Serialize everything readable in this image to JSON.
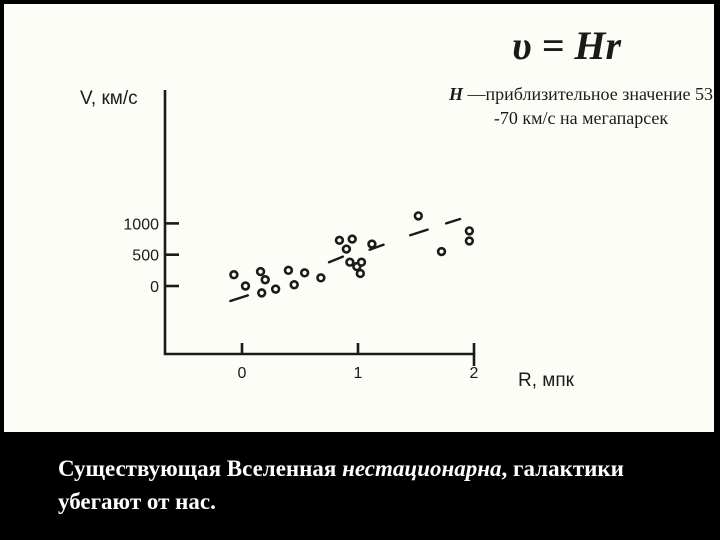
{
  "formula": {
    "upsilon": "υ",
    "rest": " = Hr"
  },
  "note": {
    "h_symbol": "H",
    "text": " —приблизительное значение 53 -70 км/с на мегапарсек"
  },
  "caption": {
    "part1": " Существующая Вселенная ",
    "part2_italic": "нестационарна",
    "part3": ", галактики убегают от нас."
  },
  "chart_data": {
    "type": "scatter",
    "ylabel": "V, км/с",
    "xlabel": "R, мпк",
    "x_ticks": [
      "0",
      "1",
      "2"
    ],
    "y_ticks": [
      "1000",
      "500",
      "0"
    ],
    "xlim": [
      -0.6,
      2.15
    ],
    "ylim": [
      -560,
      1250
    ],
    "points": [
      {
        "x": -0.07,
        "y": 180
      },
      {
        "x": 0.03,
        "y": 0
      },
      {
        "x": 0.16,
        "y": 230
      },
      {
        "x": 0.2,
        "y": 100
      },
      {
        "x": 0.17,
        "y": -110
      },
      {
        "x": 0.29,
        "y": -50
      },
      {
        "x": 0.4,
        "y": 250
      },
      {
        "x": 0.45,
        "y": 20
      },
      {
        "x": 0.54,
        "y": 210
      },
      {
        "x": 0.68,
        "y": 130
      },
      {
        "x": 0.84,
        "y": 730
      },
      {
        "x": 0.95,
        "y": 750
      },
      {
        "x": 0.9,
        "y": 590
      },
      {
        "x": 0.93,
        "y": 380
      },
      {
        "x": 0.99,
        "y": 310
      },
      {
        "x": 1.03,
        "y": 380
      },
      {
        "x": 1.02,
        "y": 200
      },
      {
        "x": 1.12,
        "y": 670
      },
      {
        "x": 1.52,
        "y": 1120
      },
      {
        "x": 1.72,
        "y": 550
      },
      {
        "x": 1.96,
        "y": 880
      },
      {
        "x": 1.96,
        "y": 720
      }
    ],
    "trend_segments": [
      {
        "x1": -0.1,
        "y1": -240,
        "x2": 0.05,
        "y2": -150
      },
      {
        "x1": 0.75,
        "y1": 380,
        "x2": 0.87,
        "y2": 470
      },
      {
        "x1": 1.1,
        "y1": 580,
        "x2": 1.22,
        "y2": 660
      },
      {
        "x1": 1.45,
        "y1": 810,
        "x2": 1.6,
        "y2": 900
      },
      {
        "x1": 1.76,
        "y1": 1000,
        "x2": 1.88,
        "y2": 1070
      }
    ]
  }
}
